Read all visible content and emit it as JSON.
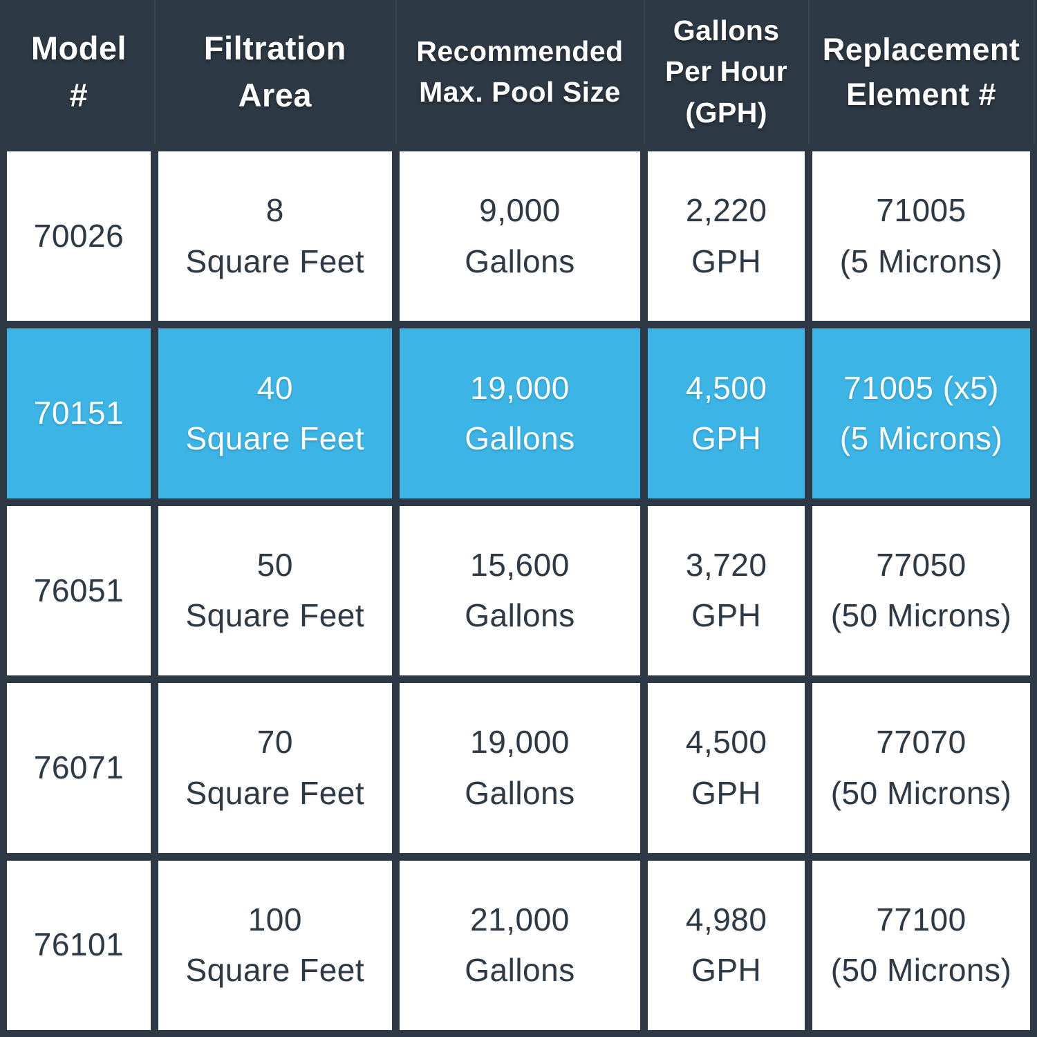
{
  "colors": {
    "header_bg": "#2d3944",
    "grid_border": "#2d3944",
    "cell_bg": "#ffffff",
    "highlight_bg": "#3cb4e6",
    "text_dark": "#2d3944",
    "text_light": "#ffffff"
  },
  "display": {
    "header": [
      "Model\n#",
      "Filtration\nArea",
      "Recommended\nMax. Pool Size",
      "Gallons\nPer Hour\n(GPH)",
      "Replacement\nElement #"
    ],
    "rows": [
      {
        "cells": [
          "70026",
          "8\nSquare Feet",
          "9,000\nGallons",
          "2,220\nGPH",
          "71005\n(5 Microns)"
        ]
      },
      {
        "cells": [
          "70151",
          "40\nSquare Feet",
          "19,000\nGallons",
          "4,500\nGPH",
          "71005 (x5)\n(5 Microns)"
        ]
      },
      {
        "cells": [
          "76051",
          "50\nSquare Feet",
          "15,600\nGallons",
          "3,720\nGPH",
          "77050\n(50 Microns)"
        ]
      },
      {
        "cells": [
          "76071",
          "70\nSquare Feet",
          "19,000\nGallons",
          "4,500\nGPH",
          "77070\n(50 Microns)"
        ]
      },
      {
        "cells": [
          "76101",
          "100\nSquare Feet",
          "21,000\nGallons",
          "4,980\nGPH",
          "77100\n(50 Microns)"
        ]
      }
    ]
  },
  "chart_data": {
    "type": "table",
    "columns": [
      "Model #",
      "Filtration Area",
      "Recommended Max. Pool Size",
      "Gallons Per Hour (GPH)",
      "Replacement Element #"
    ],
    "rows": [
      [
        "70026",
        "8 Square Feet",
        "9,000 Gallons",
        "2,220 GPH",
        "71005 (5 Microns)"
      ],
      [
        "70151",
        "40 Square Feet",
        "19,000 Gallons",
        "4,500 GPH",
        "71005 (x5) (5 Microns)"
      ],
      [
        "76051",
        "50 Square Feet",
        "15,600 Gallons",
        "3,720 GPH",
        "77050 (50 Microns)"
      ],
      [
        "76071",
        "70 Square Feet",
        "19,000 Gallons",
        "4,500 GPH",
        "77070 (50 Microns)"
      ],
      [
        "76101",
        "100 Square Feet",
        "21,000 Gallons",
        "4,980 GPH",
        "77100 (50 Microns)"
      ]
    ],
    "highlighted_row_model": "70151",
    "layout": {
      "header_position": "top",
      "grid": true
    }
  }
}
